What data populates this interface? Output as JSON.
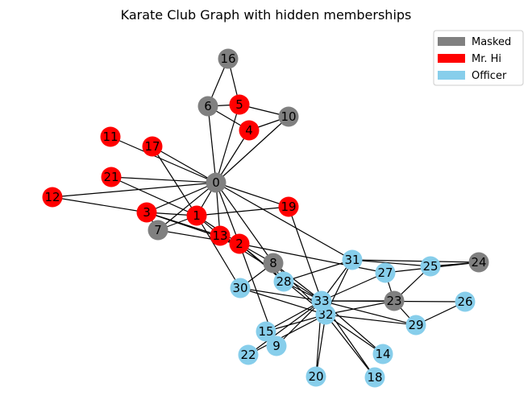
{
  "chart_data": {
    "type": "network",
    "title": "Karate Club Graph with hidden memberships",
    "legend": {
      "placement": "top-right",
      "entries": [
        {
          "label": "Masked",
          "group": "masked",
          "color": "#808080"
        },
        {
          "label": "Mr. Hi",
          "group": "mrhi",
          "color": "#ff0000"
        },
        {
          "label": "Officer",
          "group": "officer",
          "color": "#87ceeb"
        }
      ]
    },
    "nodes": [
      {
        "id": "0",
        "group": "masked"
      },
      {
        "id": "1",
        "group": "mrhi"
      },
      {
        "id": "2",
        "group": "mrhi"
      },
      {
        "id": "3",
        "group": "mrhi"
      },
      {
        "id": "4",
        "group": "mrhi"
      },
      {
        "id": "5",
        "group": "mrhi"
      },
      {
        "id": "6",
        "group": "masked"
      },
      {
        "id": "7",
        "group": "masked"
      },
      {
        "id": "8",
        "group": "masked"
      },
      {
        "id": "9",
        "group": "officer"
      },
      {
        "id": "10",
        "group": "masked"
      },
      {
        "id": "11",
        "group": "mrhi"
      },
      {
        "id": "12",
        "group": "mrhi"
      },
      {
        "id": "13",
        "group": "mrhi"
      },
      {
        "id": "14",
        "group": "officer"
      },
      {
        "id": "15",
        "group": "officer"
      },
      {
        "id": "16",
        "group": "masked"
      },
      {
        "id": "17",
        "group": "mrhi"
      },
      {
        "id": "18",
        "group": "officer"
      },
      {
        "id": "19",
        "group": "mrhi"
      },
      {
        "id": "20",
        "group": "officer"
      },
      {
        "id": "21",
        "group": "mrhi"
      },
      {
        "id": "22",
        "group": "officer"
      },
      {
        "id": "23",
        "group": "masked"
      },
      {
        "id": "24",
        "group": "masked"
      },
      {
        "id": "25",
        "group": "officer"
      },
      {
        "id": "26",
        "group": "officer"
      },
      {
        "id": "27",
        "group": "officer"
      },
      {
        "id": "28",
        "group": "officer"
      },
      {
        "id": "29",
        "group": "officer"
      },
      {
        "id": "30",
        "group": "officer"
      },
      {
        "id": "31",
        "group": "officer"
      },
      {
        "id": "32",
        "group": "officer"
      },
      {
        "id": "33",
        "group": "officer"
      }
    ],
    "edges": [
      [
        "0",
        "1"
      ],
      [
        "0",
        "2"
      ],
      [
        "0",
        "3"
      ],
      [
        "0",
        "4"
      ],
      [
        "0",
        "5"
      ],
      [
        "0",
        "6"
      ],
      [
        "0",
        "7"
      ],
      [
        "0",
        "8"
      ],
      [
        "0",
        "10"
      ],
      [
        "0",
        "11"
      ],
      [
        "0",
        "12"
      ],
      [
        "0",
        "13"
      ],
      [
        "0",
        "17"
      ],
      [
        "0",
        "19"
      ],
      [
        "0",
        "21"
      ],
      [
        "0",
        "31"
      ],
      [
        "1",
        "2"
      ],
      [
        "1",
        "3"
      ],
      [
        "1",
        "7"
      ],
      [
        "1",
        "13"
      ],
      [
        "1",
        "17"
      ],
      [
        "1",
        "19"
      ],
      [
        "1",
        "21"
      ],
      [
        "1",
        "30"
      ],
      [
        "2",
        "3"
      ],
      [
        "2",
        "7"
      ],
      [
        "2",
        "8"
      ],
      [
        "2",
        "9"
      ],
      [
        "2",
        "13"
      ],
      [
        "2",
        "27"
      ],
      [
        "2",
        "28"
      ],
      [
        "2",
        "32"
      ],
      [
        "3",
        "7"
      ],
      [
        "3",
        "12"
      ],
      [
        "3",
        "13"
      ],
      [
        "4",
        "6"
      ],
      [
        "4",
        "10"
      ],
      [
        "5",
        "6"
      ],
      [
        "5",
        "10"
      ],
      [
        "5",
        "16"
      ],
      [
        "6",
        "16"
      ],
      [
        "8",
        "30"
      ],
      [
        "8",
        "32"
      ],
      [
        "8",
        "33"
      ],
      [
        "9",
        "33"
      ],
      [
        "13",
        "33"
      ],
      [
        "14",
        "32"
      ],
      [
        "14",
        "33"
      ],
      [
        "15",
        "32"
      ],
      [
        "15",
        "33"
      ],
      [
        "18",
        "32"
      ],
      [
        "18",
        "33"
      ],
      [
        "19",
        "33"
      ],
      [
        "20",
        "32"
      ],
      [
        "20",
        "33"
      ],
      [
        "22",
        "32"
      ],
      [
        "22",
        "33"
      ],
      [
        "23",
        "25"
      ],
      [
        "23",
        "27"
      ],
      [
        "23",
        "29"
      ],
      [
        "23",
        "32"
      ],
      [
        "23",
        "33"
      ],
      [
        "24",
        "25"
      ],
      [
        "24",
        "27"
      ],
      [
        "24",
        "31"
      ],
      [
        "25",
        "31"
      ],
      [
        "26",
        "29"
      ],
      [
        "26",
        "33"
      ],
      [
        "27",
        "33"
      ],
      [
        "28",
        "31"
      ],
      [
        "28",
        "33"
      ],
      [
        "29",
        "32"
      ],
      [
        "29",
        "33"
      ],
      [
        "30",
        "32"
      ],
      [
        "30",
        "33"
      ],
      [
        "31",
        "32"
      ],
      [
        "31",
        "33"
      ],
      [
        "32",
        "33"
      ]
    ]
  }
}
